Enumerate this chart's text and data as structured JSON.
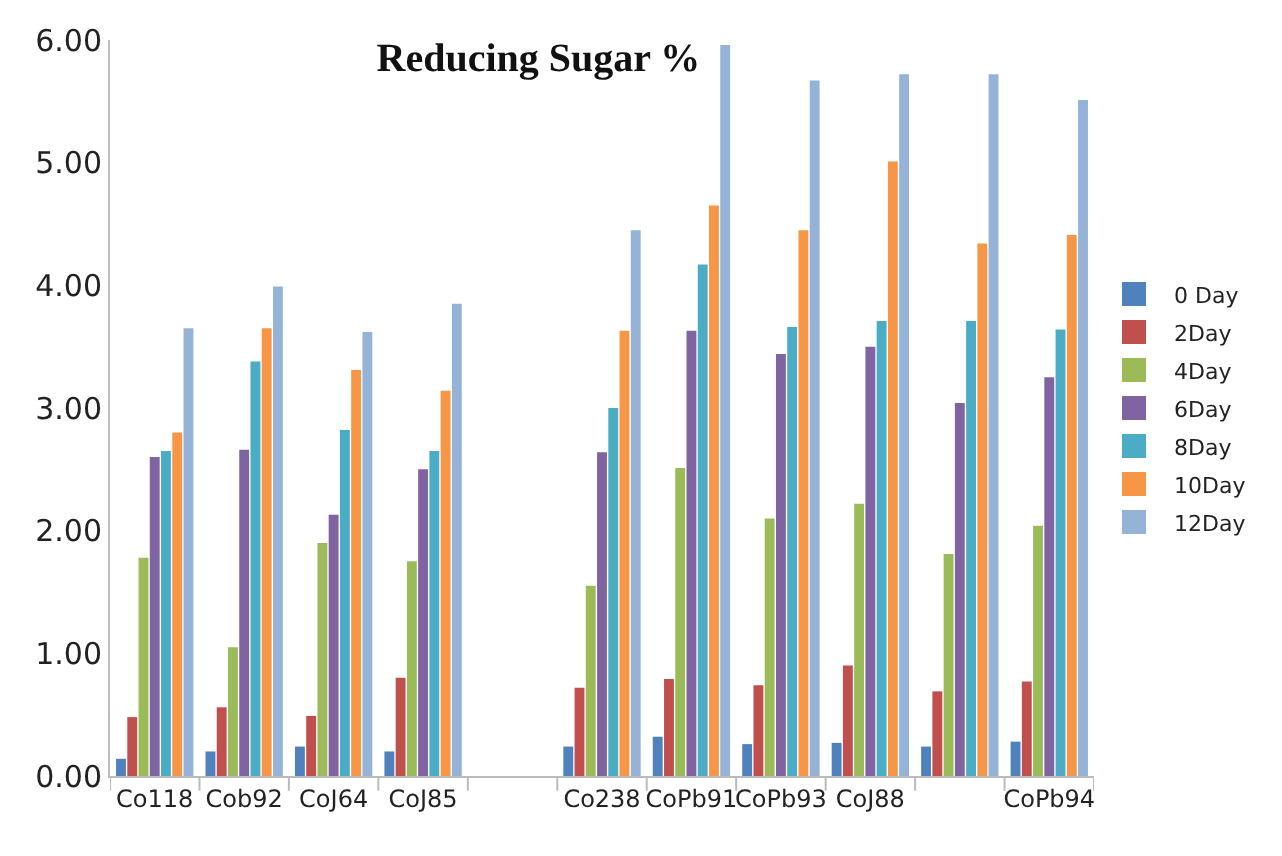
{
  "chart_data": {
    "type": "bar",
    "title": "Reducing Sugar %",
    "categories": [
      "Co118",
      "Cob92",
      "CoJ64",
      "CoJ85",
      null,
      "Co238",
      "CoPb91",
      "CoPb93",
      "CoJ88",
      null,
      "CoPb94"
    ],
    "series": [
      {
        "name": "0 Day",
        "color": "#4f81bd",
        "values": [
          0.14,
          0.2,
          0.24,
          0.2,
          null,
          0.24,
          0.32,
          0.26,
          0.27,
          0.24,
          0.28
        ]
      },
      {
        "name": "2Day",
        "color": "#c0504d",
        "values": [
          0.48,
          0.56,
          0.49,
          0.8,
          null,
          0.72,
          0.79,
          0.74,
          0.9,
          0.69,
          0.77
        ]
      },
      {
        "name": "4Day",
        "color": "#9bbb59",
        "values": [
          1.78,
          1.05,
          1.9,
          1.75,
          null,
          1.55,
          2.51,
          2.1,
          2.22,
          1.81,
          2.04
        ]
      },
      {
        "name": "6Day",
        "color": "#8064a2",
        "values": [
          2.6,
          2.66,
          2.13,
          2.5,
          null,
          2.64,
          3.63,
          3.44,
          3.5,
          3.04,
          3.25
        ]
      },
      {
        "name": "8Day",
        "color": "#4bacc6",
        "values": [
          2.65,
          3.38,
          2.82,
          2.65,
          null,
          3.0,
          4.17,
          3.66,
          3.71,
          3.71,
          3.64
        ]
      },
      {
        "name": "10Day",
        "color": "#f79646",
        "values": [
          2.8,
          3.65,
          3.31,
          3.14,
          null,
          3.63,
          4.65,
          4.45,
          5.01,
          4.34,
          4.41
        ]
      },
      {
        "name": "12Day",
        "color": "#95b3d7",
        "values": [
          3.65,
          3.99,
          3.62,
          3.85,
          null,
          4.45,
          5.96,
          5.67,
          5.72,
          5.72,
          5.51
        ]
      }
    ],
    "ylim": [
      0,
      6
    ],
    "yticks": [
      {
        "value": 0,
        "label": "0.00"
      },
      {
        "value": 1,
        "label": "1.00"
      },
      {
        "value": 2,
        "label": "2.00"
      },
      {
        "value": 3,
        "label": "3.00"
      },
      {
        "value": 4,
        "label": "4.00"
      },
      {
        "value": 5,
        "label": "5.00"
      },
      {
        "value": 6,
        "label": "6.00"
      }
    ],
    "legend": "right"
  }
}
